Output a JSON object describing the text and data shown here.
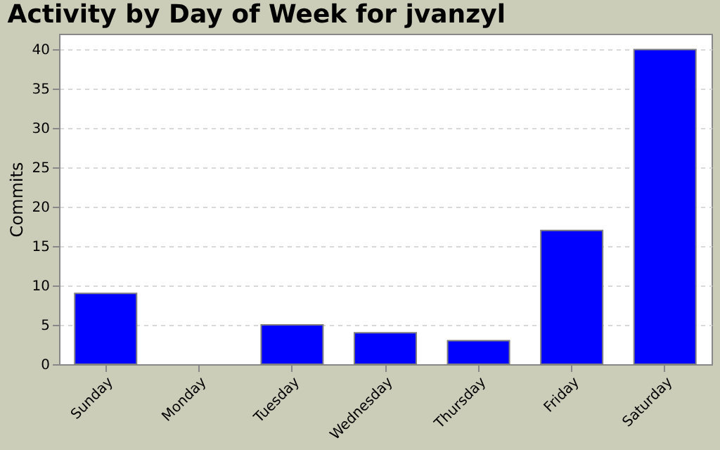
{
  "chart_data": {
    "type": "bar",
    "title": "Activity by Day of Week for jvanzyl",
    "ylabel": "Commits",
    "categories": [
      "Sunday",
      "Monday",
      "Tuesday",
      "Wednesday",
      "Thursday",
      "Friday",
      "Saturday"
    ],
    "values": [
      9,
      0,
      5,
      4,
      3,
      17,
      40
    ],
    "color": "#0000ff",
    "ylim": [
      0,
      42
    ],
    "yticks": [
      0,
      5,
      10,
      15,
      20,
      25,
      30,
      35,
      40
    ],
    "grid": "y"
  }
}
